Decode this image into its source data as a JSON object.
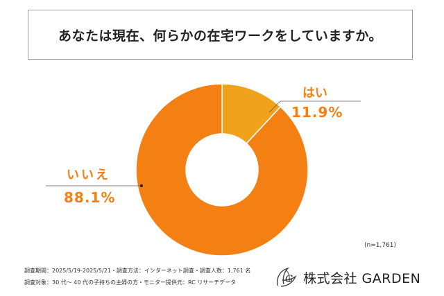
{
  "question": "あなたは現在、何らかの在宅ワークをしていますか。",
  "chart_data": {
    "type": "pie",
    "categories": [
      "はい",
      "いいえ"
    ],
    "values": [
      11.9,
      88.1
    ],
    "value_labels": [
      "11.9%",
      "88.1%"
    ],
    "colors": [
      "#f0a21c",
      "#f47f12"
    ]
  },
  "sample_size": "(n=1,761)",
  "footnotes": [
    "調査期間：2025/5/19-2025/5/21・調査方法：インターネット調査・調査人数：1,761 名",
    "調査対象：30 代〜 40 代の子持ちの主婦の方・モニター提供元：RC リサーチデータ"
  ],
  "company": "株式会社 GARDEN"
}
